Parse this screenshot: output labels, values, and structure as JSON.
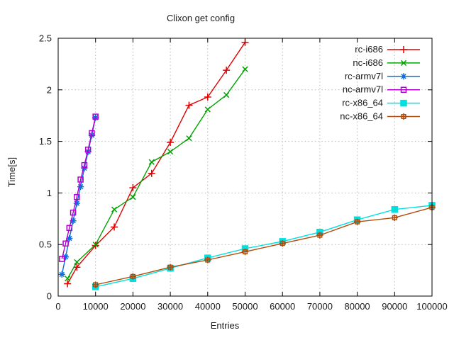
{
  "chart_data": {
    "type": "line",
    "title": "Clixon get config",
    "xlabel": "Entries",
    "ylabel": "Time[s]",
    "xlim": [
      0,
      100000
    ],
    "ylim": [
      0,
      2.5
    ],
    "xticks": [
      0,
      10000,
      20000,
      30000,
      40000,
      50000,
      60000,
      70000,
      80000,
      90000,
      100000
    ],
    "xtick_labels": [
      "0",
      "10000",
      "20000",
      "30000",
      "40000",
      "50000",
      "60000",
      "70000",
      "80000",
      "90000",
      "100000"
    ],
    "yticks": [
      0,
      0.5,
      1,
      1.5,
      2,
      2.5
    ],
    "ytick_labels": [
      "0",
      "0.5",
      "1",
      "1.5",
      "2",
      "2.5"
    ],
    "grid": true,
    "legend_position": "top-right-inside",
    "grid_color": "#b8b8b8",
    "axis_color": "#000000",
    "series": [
      {
        "name": "rc-i686",
        "color": "#e00000",
        "marker": "plus",
        "x": [
          2500,
          5000,
          10000,
          15000,
          20000,
          25000,
          30000,
          35000,
          40000,
          45000,
          50000
        ],
        "y": [
          0.12,
          0.28,
          0.49,
          0.67,
          1.05,
          1.19,
          1.49,
          1.85,
          1.93,
          2.19,
          2.46
        ]
      },
      {
        "name": "nc-i686",
        "color": "#00a400",
        "marker": "cross",
        "x": [
          2500,
          5000,
          10000,
          15000,
          20000,
          25000,
          30000,
          35000,
          40000,
          45000,
          50000
        ],
        "y": [
          0.17,
          0.33,
          0.5,
          0.84,
          0.96,
          1.3,
          1.4,
          1.53,
          1.81,
          1.95,
          2.2
        ]
      },
      {
        "name": "rc-armv7l",
        "color": "#0c6be0",
        "marker": "asterisk",
        "x": [
          1000,
          2000,
          3000,
          4000,
          5000,
          6000,
          7000,
          8000,
          9000,
          10000
        ],
        "y": [
          0.21,
          0.38,
          0.56,
          0.73,
          0.9,
          1.06,
          1.24,
          1.4,
          1.56,
          1.73
        ]
      },
      {
        "name": "nc-armv7l",
        "color": "#b400d3",
        "marker": "open-square",
        "x": [
          1000,
          2000,
          3000,
          4000,
          5000,
          6000,
          7000,
          8000,
          9000,
          10000
        ],
        "y": [
          0.36,
          0.51,
          0.66,
          0.81,
          0.96,
          1.13,
          1.27,
          1.42,
          1.58,
          1.74
        ]
      },
      {
        "name": "rc-x86_64",
        "color": "#00e0e0",
        "marker": "filled-square",
        "x": [
          10000,
          20000,
          30000,
          40000,
          50000,
          60000,
          70000,
          80000,
          90000,
          100000
        ],
        "y": [
          0.09,
          0.17,
          0.27,
          0.37,
          0.46,
          0.53,
          0.62,
          0.74,
          0.84,
          0.88
        ]
      },
      {
        "name": "nc-x86_64",
        "color": "#b04c0c",
        "marker": "square-plus",
        "x": [
          10000,
          20000,
          30000,
          40000,
          50000,
          60000,
          70000,
          80000,
          90000,
          100000
        ],
        "y": [
          0.11,
          0.19,
          0.28,
          0.35,
          0.43,
          0.51,
          0.59,
          0.72,
          0.76,
          0.86
        ]
      }
    ]
  }
}
